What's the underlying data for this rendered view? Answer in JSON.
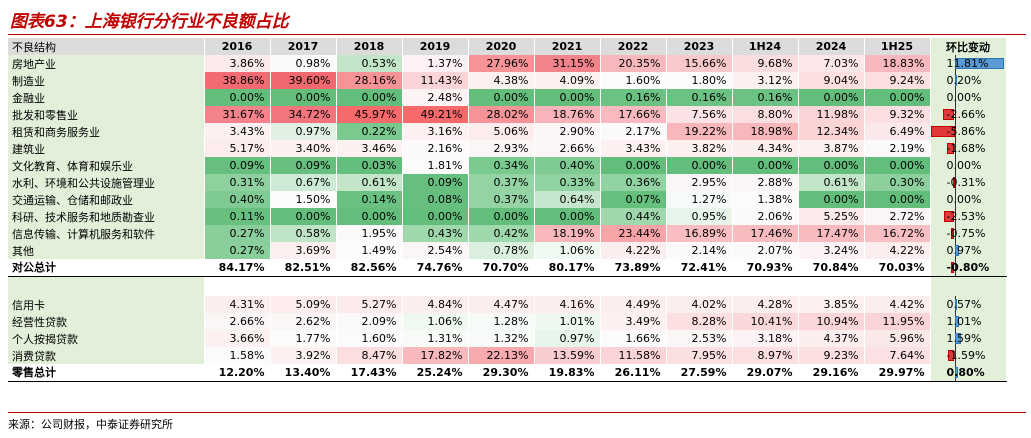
{
  "title": "图表63：上海银行分行业不良额占比",
  "header": [
    "不良结构",
    "2016",
    "2017",
    "2018",
    "2019",
    "2020",
    "2021",
    "2022",
    "2023",
    "1H24",
    "2024",
    "1H25",
    "环比变动"
  ],
  "rows": [
    {
      "label": "房地产业",
      "values": [
        "3.86%",
        "0.98%",
        "0.53%",
        "1.37%",
        "27.96%",
        "31.15%",
        "20.35%",
        "15.66%",
        "9.68%",
        "7.03%",
        "18.83%"
      ],
      "change": "11.81%",
      "change_value": 11.81,
      "colors": [
        "#fbeaec",
        "#f9fbf9",
        "#c3e6c8",
        "#fdf1f3",
        "#f59397",
        "#f3838b",
        "#f7b8bc",
        "#f8c8cb",
        "#fbdddf",
        "#fbe7e9",
        "#f7b9bd"
      ]
    },
    {
      "label": "制造业",
      "values": [
        "38.86%",
        "39.60%",
        "28.16%",
        "11.43%",
        "4.38%",
        "4.09%",
        "1.60%",
        "1.80%",
        "3.12%",
        "9.04%",
        "9.24%"
      ],
      "change": "0.20%",
      "change_value": 0.2,
      "colors": [
        "#f26a72",
        "#f26870",
        "#f59397",
        "#fad4d6",
        "#fcf0f1",
        "#fcf0f1",
        "#fbfbfb",
        "#fbfbfb",
        "#fcf0f1",
        "#fbdfe1",
        "#fbdfe1"
      ]
    },
    {
      "label": "金融业",
      "values": [
        "0.00%",
        "0.00%",
        "0.00%",
        "2.48%",
        "0.00%",
        "0.00%",
        "0.16%",
        "0.16%",
        "0.16%",
        "0.00%",
        "0.00%"
      ],
      "change": "0.00%",
      "change_value": 0.0,
      "colors": [
        "#63be7b",
        "#63be7b",
        "#63be7b",
        "#fdf3f4",
        "#63be7b",
        "#63be7b",
        "#6cc283",
        "#6cc283",
        "#6cc283",
        "#63be7b",
        "#63be7b"
      ]
    },
    {
      "label": "批发和零售业",
      "values": [
        "31.67%",
        "34.72%",
        "45.97%",
        "49.21%",
        "28.02%",
        "18.76%",
        "17.66%",
        "7.56%",
        "8.80%",
        "11.98%",
        "9.32%"
      ],
      "change": "-2.66%",
      "change_value": -2.66,
      "colors": [
        "#f3828a",
        "#f2757d",
        "#f8696b",
        "#f8696b",
        "#f59397",
        "#f8b4b8",
        "#f8babe",
        "#fbe2e4",
        "#fbdee0",
        "#fad4d6",
        "#fbdfe1"
      ]
    },
    {
      "label": "租赁和商务服务业",
      "values": [
        "3.43%",
        "0.97%",
        "0.22%",
        "3.16%",
        "5.06%",
        "2.90%",
        "2.17%",
        "19.22%",
        "18.98%",
        "12.34%",
        "6.49%"
      ],
      "change": "-5.86%",
      "change_value": -5.86,
      "colors": [
        "#fcf0f1",
        "#e0f1e3",
        "#7ac98f",
        "#fcf0f1",
        "#fceced",
        "#fbf6f6",
        "#fbf9f9",
        "#f8b7ba",
        "#f8b7ba",
        "#fad3d5",
        "#fbe8ea"
      ]
    },
    {
      "label": "建筑业",
      "values": [
        "5.17%",
        "3.40%",
        "3.46%",
        "2.16%",
        "2.93%",
        "2.66%",
        "3.43%",
        "3.82%",
        "4.34%",
        "3.87%",
        "2.19%"
      ],
      "change": "-1.68%",
      "change_value": -1.68,
      "colors": [
        "#fceced",
        "#fcf0f1",
        "#fcf0f1",
        "#fbf9f9",
        "#fbf6f6",
        "#fbf6f6",
        "#fcf0f1",
        "#fcf0f1",
        "#fcedee",
        "#fcf0f1",
        "#fbf9f9"
      ]
    },
    {
      "label": "文化教育、体育和娱乐业",
      "values": [
        "0.09%",
        "0.09%",
        "0.03%",
        "1.81%",
        "0.34%",
        "0.40%",
        "0.00%",
        "0.00%",
        "0.00%",
        "0.00%",
        "0.00%"
      ],
      "change": "0.00%",
      "change_value": 0.0,
      "colors": [
        "#66bf7e",
        "#66bf7e",
        "#64be7c",
        "#fbfbfb",
        "#7ac98f",
        "#80cb94",
        "#63be7b",
        "#63be7b",
        "#63be7b",
        "#63be7b",
        "#63be7b"
      ]
    },
    {
      "label": "水利、环境和公共设施管理业",
      "values": [
        "0.31%",
        "0.67%",
        "0.61%",
        "0.09%",
        "0.37%",
        "0.33%",
        "0.36%",
        "2.95%",
        "2.88%",
        "0.61%",
        "0.30%"
      ],
      "change": "-0.31%",
      "change_value": -0.31,
      "colors": [
        "#8ed19f",
        "#cdebd4",
        "#c3e6c8",
        "#66bf7e",
        "#94d3a4",
        "#90d2a1",
        "#92d3a3",
        "#fbf6f6",
        "#fbf6f6",
        "#c3e6c8",
        "#8dd09e"
      ]
    },
    {
      "label": "交通运输、仓储和邮政业",
      "values": [
        "0.40%",
        "1.50%",
        "0.14%",
        "0.08%",
        "0.37%",
        "0.64%",
        "0.07%",
        "1.27%",
        "1.38%",
        "0.00%",
        "0.00%"
      ],
      "change": "0.00%",
      "change_value": 0.0,
      "colors": [
        "#80cb94",
        "#fbfcfb",
        "#6bc182",
        "#66bf7e",
        "#94d3a4",
        "#c6e7ce",
        "#65bf7d",
        "#f7fbf8",
        "#fafbfa",
        "#63be7b",
        "#63be7b"
      ]
    },
    {
      "label": "科研、技术服务和地质勘查业",
      "values": [
        "0.11%",
        "0.00%",
        "0.00%",
        "0.00%",
        "0.00%",
        "0.00%",
        "0.44%",
        "0.95%",
        "2.06%",
        "5.25%",
        "2.72%"
      ],
      "change": "-2.53%",
      "change_value": -2.53,
      "colors": [
        "#68c07f",
        "#63be7b",
        "#63be7b",
        "#63be7b",
        "#63be7b",
        "#63be7b",
        "#9fd8ad",
        "#e6f4e9",
        "#fbf9f9",
        "#fcebec",
        "#fbf6f6"
      ]
    },
    {
      "label": "信息传输、计算机服务和软件",
      "values": [
        "0.27%",
        "0.58%",
        "1.95%",
        "0.43%",
        "0.42%",
        "18.19%",
        "23.44%",
        "16.89%",
        "17.46%",
        "17.47%",
        "16.72%"
      ],
      "change": "-0.75%",
      "change_value": -0.75,
      "colors": [
        "#89ce9b",
        "#bfe5c6",
        "#fbf9f9",
        "#9fd8ad",
        "#9ed8ac",
        "#f8b7ba",
        "#f7a4a9",
        "#f8bec1",
        "#f8bcbf",
        "#f8bcbf",
        "#f8c0c3"
      ]
    },
    {
      "label": "其他",
      "values": [
        "0.27%",
        "3.69%",
        "1.49%",
        "2.54%",
        "0.78%",
        "1.06%",
        "4.22%",
        "2.14%",
        "2.07%",
        "3.24%",
        "4.22%"
      ],
      "change": "0.97%",
      "change_value": 0.97,
      "colors": [
        "#89ce9b",
        "#fcf0f1",
        "#fbfcfb",
        "#fbf6f6",
        "#dbefdf",
        "#f0f8f2",
        "#fcedee",
        "#fbf9f9",
        "#fbf9f9",
        "#fcf2f3",
        "#fcedee"
      ]
    }
  ],
  "total_corp": {
    "label": "对公总计",
    "values": [
      "84.17%",
      "82.51%",
      "82.56%",
      "74.76%",
      "70.70%",
      "80.17%",
      "73.89%",
      "72.41%",
      "70.93%",
      "70.84%",
      "70.03%"
    ],
    "change": "-0.80%",
    "change_value": -0.8
  },
  "retail_rows": [
    {
      "label": "信用卡",
      "values": [
        "4.31%",
        "5.09%",
        "5.27%",
        "4.84%",
        "4.47%",
        "4.16%",
        "4.49%",
        "4.02%",
        "4.28%",
        "3.85%",
        "4.42%"
      ],
      "change": "0.57%",
      "change_value": 0.57,
      "colors": [
        "#fcedee",
        "#fceced",
        "#fcebec",
        "#fcedee",
        "#fcedee",
        "#fcedee",
        "#fcedee",
        "#fcedee",
        "#fcedee",
        "#fcf0f1",
        "#fcedee"
      ]
    },
    {
      "label": "经营性贷款",
      "values": [
        "2.66%",
        "2.62%",
        "2.09%",
        "1.06%",
        "1.28%",
        "1.01%",
        "3.49%",
        "8.28%",
        "10.41%",
        "10.94%",
        "11.95%"
      ],
      "change": "1.01%",
      "change_value": 1.01,
      "colors": [
        "#fbf6f6",
        "#fbf6f6",
        "#fbf9f9",
        "#f0f8f2",
        "#f7fbf8",
        "#eef7f0",
        "#fcf0f1",
        "#fbdfe1",
        "#fad8da",
        "#fad6d8",
        "#fad4d6"
      ]
    },
    {
      "label": "个人按揭贷款",
      "values": [
        "3.66%",
        "1.77%",
        "1.60%",
        "1.31%",
        "1.32%",
        "0.97%",
        "1.66%",
        "2.53%",
        "3.18%",
        "4.37%",
        "5.96%"
      ],
      "change": "1.59%",
      "change_value": 1.59,
      "colors": [
        "#fcf0f1",
        "#fbfbfb",
        "#fbfbfb",
        "#f8fbf8",
        "#f8fbf8",
        "#e8f5eb",
        "#fbfbfb",
        "#fbf6f6",
        "#fcf2f3",
        "#fcedee",
        "#fbe9ea"
      ]
    },
    {
      "label": "消费贷款",
      "values": [
        "1.58%",
        "3.92%",
        "8.47%",
        "17.82%",
        "22.13%",
        "13.59%",
        "11.58%",
        "7.95%",
        "8.97%",
        "9.23%",
        "7.64%"
      ],
      "change": "-1.59%",
      "change_value": -1.59,
      "colors": [
        "#fbfbfb",
        "#fcf0f1",
        "#fbdee0",
        "#f8b9bd",
        "#f7a9ad",
        "#f9ccd0",
        "#fad4d6",
        "#fbe0e2",
        "#fbdee0",
        "#fbdfe1",
        "#fbe1e3"
      ]
    }
  ],
  "total_retail": {
    "label": "零售总计",
    "values": [
      "12.20%",
      "13.40%",
      "17.43%",
      "25.24%",
      "29.30%",
      "19.83%",
      "26.11%",
      "27.59%",
      "29.07%",
      "29.16%",
      "29.97%"
    ],
    "change": "0.80%",
    "change_value": 0.8
  },
  "source": "来源：公司财报，中泰证券研究所"
}
